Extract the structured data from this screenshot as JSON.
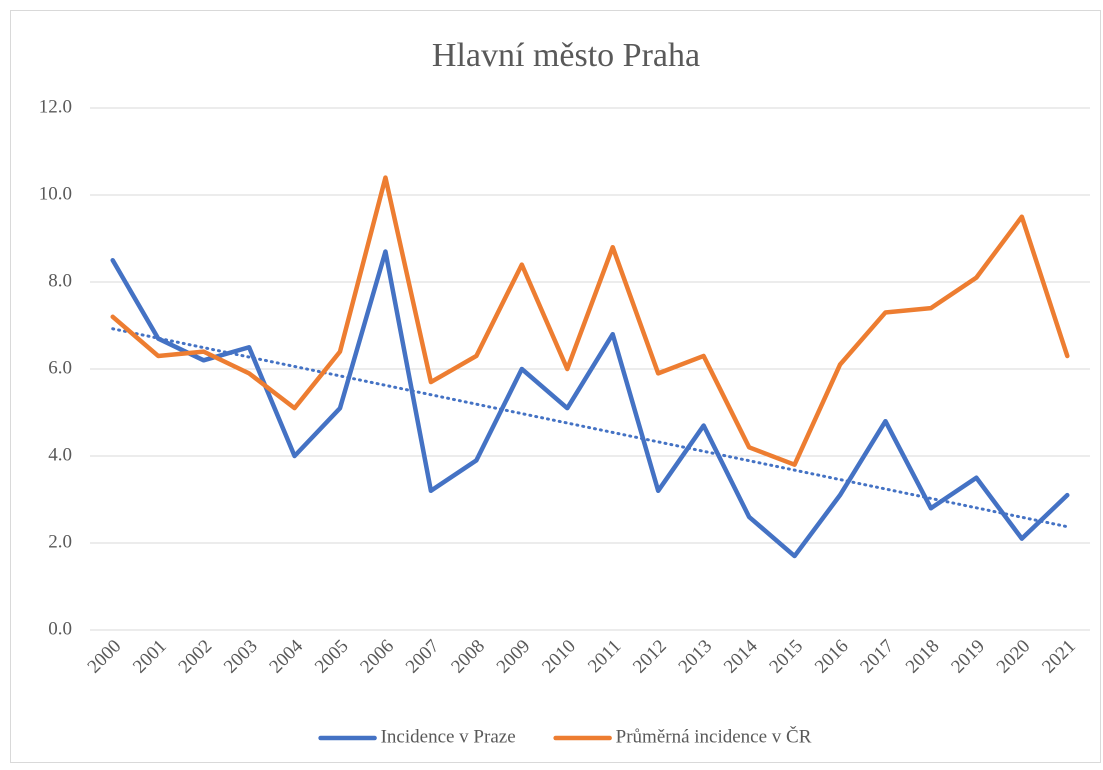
{
  "chart_data": {
    "type": "line",
    "title": "Hlavní město Praha",
    "categories": [
      "2000",
      "2001",
      "2002",
      "2003",
      "2004",
      "2005",
      "2006",
      "2007",
      "2008",
      "2009",
      "2010",
      "2011",
      "2012",
      "2013",
      "2014",
      "2015",
      "2016",
      "2017",
      "2018",
      "2019",
      "2020",
      "2021"
    ],
    "series": [
      {
        "name": "Incidence v Praze",
        "color": "#4472c4",
        "trendline": "linear",
        "values": [
          8.5,
          6.7,
          6.2,
          6.5,
          4.0,
          5.1,
          8.7,
          3.2,
          3.9,
          6.0,
          5.1,
          6.8,
          3.2,
          4.7,
          2.6,
          1.7,
          3.1,
          4.8,
          2.8,
          3.5,
          2.1,
          3.1
        ]
      },
      {
        "name": "Průměrná incidence v ČR",
        "color": "#ed7d31",
        "values": [
          7.2,
          6.3,
          6.4,
          5.9,
          5.1,
          6.4,
          10.4,
          5.7,
          6.3,
          8.4,
          6.0,
          8.8,
          5.9,
          6.3,
          4.2,
          3.8,
          6.1,
          7.3,
          7.4,
          8.1,
          9.5,
          6.3
        ]
      }
    ],
    "ylim": [
      0,
      12
    ],
    "yticks": [
      {
        "value": 0,
        "label": "0.0"
      },
      {
        "value": 2,
        "label": "2.0"
      },
      {
        "value": 4,
        "label": "4.0"
      },
      {
        "value": 6,
        "label": "6.0"
      },
      {
        "value": 8,
        "label": "8.0"
      },
      {
        "value": 10,
        "label": "10.0"
      },
      {
        "value": 12,
        "label": "12.0"
      }
    ],
    "grid": true,
    "legend": "bottom"
  }
}
